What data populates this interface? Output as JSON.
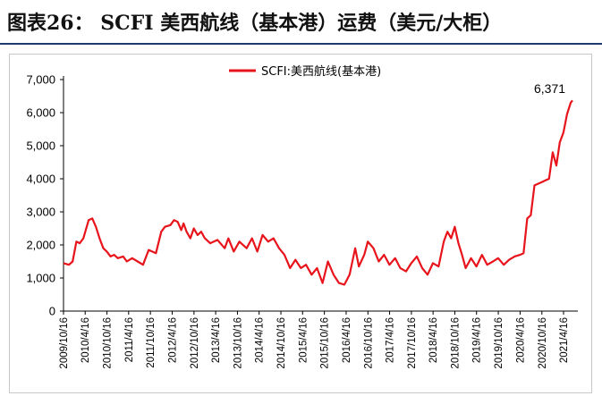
{
  "header": {
    "title": "图表26：  SCFI 美西航线（基本港）运费（美元/大柜）"
  },
  "colors": {
    "series": "#e8141c",
    "title_rule": "#1f3a6e",
    "axis": "#000000"
  },
  "chart_data": {
    "type": "line",
    "title": "",
    "xlabel": "",
    "ylabel": "",
    "ylim": [
      0,
      7000
    ],
    "y_ticks": [
      0,
      1000,
      2000,
      3000,
      4000,
      5000,
      6000,
      7000
    ],
    "y_tick_labels": [
      "0",
      "1,000",
      "2,000",
      "3,000",
      "4,000",
      "5,000",
      "6,000",
      "7,000"
    ],
    "x_range": [
      "2009-10-16",
      "2021-06-30"
    ],
    "x_tick_labels": [
      "2009/10/16",
      "2010/4/16",
      "2010/10/16",
      "2011/4/16",
      "2011/10/16",
      "2012/4/16",
      "2012/10/16",
      "2013/4/16",
      "2013/10/16",
      "2014/4/16",
      "2014/10/16",
      "2015/4/16",
      "2015/10/16",
      "2016/4/16",
      "2016/10/16",
      "2017/4/16",
      "2017/10/16",
      "2018/4/16",
      "2018/10/16",
      "2019/4/16",
      "2019/10/16",
      "2020/4/16",
      "2020/10/16",
      "2021/4/16"
    ],
    "legend": "top-center",
    "grid": false,
    "annotation": "6,371",
    "series": [
      {
        "name": "SCFI:美西航线(基本港)",
        "x": [
          "2009-10-16",
          "2009-12-01",
          "2010-01-01",
          "2010-02-01",
          "2010-03-01",
          "2010-04-01",
          "2010-05-15",
          "2010-06-15",
          "2010-07-15",
          "2010-08-15",
          "2010-09-15",
          "2010-10-15",
          "2010-11-15",
          "2010-12-15",
          "2011-01-15",
          "2011-03-01",
          "2011-04-01",
          "2011-05-15",
          "2011-07-01",
          "2011-08-15",
          "2011-10-01",
          "2011-12-01",
          "2012-01-15",
          "2012-02-15",
          "2012-04-01",
          "2012-05-01",
          "2012-06-01",
          "2012-07-01",
          "2012-07-20",
          "2012-08-15",
          "2012-09-15",
          "2012-10-15",
          "2012-11-15",
          "2012-12-15",
          "2013-01-15",
          "2013-03-01",
          "2013-05-01",
          "2013-07-01",
          "2013-08-01",
          "2013-09-15",
          "2013-11-01",
          "2014-01-01",
          "2014-02-15",
          "2014-04-01",
          "2014-05-15",
          "2014-07-01",
          "2014-08-15",
          "2014-10-01",
          "2014-11-15",
          "2015-01-01",
          "2015-02-15",
          "2015-04-01",
          "2015-05-15",
          "2015-07-01",
          "2015-08-15",
          "2015-10-01",
          "2015-11-15",
          "2016-01-01",
          "2016-02-15",
          "2016-04-01",
          "2016-05-15",
          "2016-07-01",
          "2016-08-01",
          "2016-09-15",
          "2016-10-15",
          "2016-12-01",
          "2017-01-15",
          "2017-03-01",
          "2017-04-15",
          "2017-06-01",
          "2017-07-15",
          "2017-09-01",
          "2017-10-15",
          "2017-12-01",
          "2018-01-15",
          "2018-03-01",
          "2018-04-15",
          "2018-06-01",
          "2018-07-15",
          "2018-08-15",
          "2018-09-15",
          "2018-10-15",
          "2018-11-15",
          "2018-12-15",
          "2019-01-15",
          "2019-03-01",
          "2019-04-15",
          "2019-06-01",
          "2019-07-15",
          "2019-09-01",
          "2019-10-15",
          "2019-12-01",
          "2020-01-15",
          "2020-03-01",
          "2020-04-15",
          "2020-05-15",
          "2020-06-15",
          "2020-07-15",
          "2020-08-15",
          "2020-09-15",
          "2020-10-15",
          "2020-11-15",
          "2020-12-15",
          "2021-01-15",
          "2021-02-15",
          "2021-03-15",
          "2021-04-15",
          "2021-05-15",
          "2021-06-15",
          "2021-06-30"
        ],
        "values": [
          1450,
          1400,
          1500,
          2100,
          2050,
          2200,
          2750,
          2800,
          2550,
          2200,
          1900,
          1800,
          1650,
          1700,
          1600,
          1650,
          1500,
          1600,
          1500,
          1400,
          1850,
          1750,
          2400,
          2550,
          2600,
          2750,
          2700,
          2450,
          2650,
          2400,
          2200,
          2500,
          2300,
          2400,
          2200,
          2050,
          2150,
          1900,
          2200,
          1800,
          2100,
          1900,
          2200,
          1800,
          2300,
          2100,
          2200,
          1900,
          1700,
          1300,
          1550,
          1300,
          1400,
          1100,
          1300,
          850,
          1500,
          1100,
          850,
          800,
          1100,
          1900,
          1350,
          1700,
          2100,
          1900,
          1500,
          1700,
          1400,
          1600,
          1300,
          1200,
          1450,
          1650,
          1300,
          1100,
          1450,
          1350,
          2100,
          2400,
          2200,
          2550,
          2050,
          1700,
          1300,
          1600,
          1350,
          1700,
          1400,
          1500,
          1600,
          1400,
          1550,
          1650,
          1700,
          1750,
          2800,
          2900,
          3800,
          3850,
          3900,
          3950,
          4000,
          4800,
          4400,
          5100,
          5400,
          5950,
          6300,
          6371
        ]
      }
    ]
  }
}
